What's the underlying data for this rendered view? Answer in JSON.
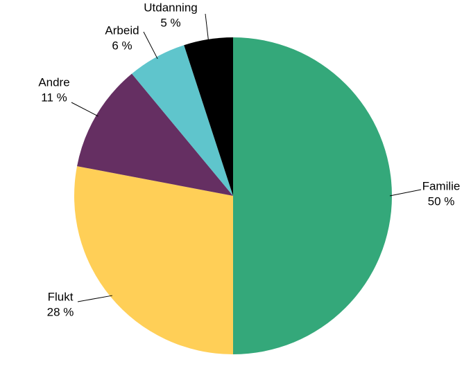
{
  "chart_data": {
    "type": "pie",
    "categories": [
      "Familie",
      "Flukt",
      "Andre",
      "Arbeid",
      "Utdanning"
    ],
    "values": [
      50,
      28,
      11,
      6,
      5
    ],
    "value_labels": [
      "50 %",
      "28 %",
      "11 %",
      "6 %",
      "5 %"
    ],
    "colors": [
      "#34a87a",
      "#ffcf57",
      "#652f62",
      "#5fc5cc",
      "#000000"
    ]
  }
}
